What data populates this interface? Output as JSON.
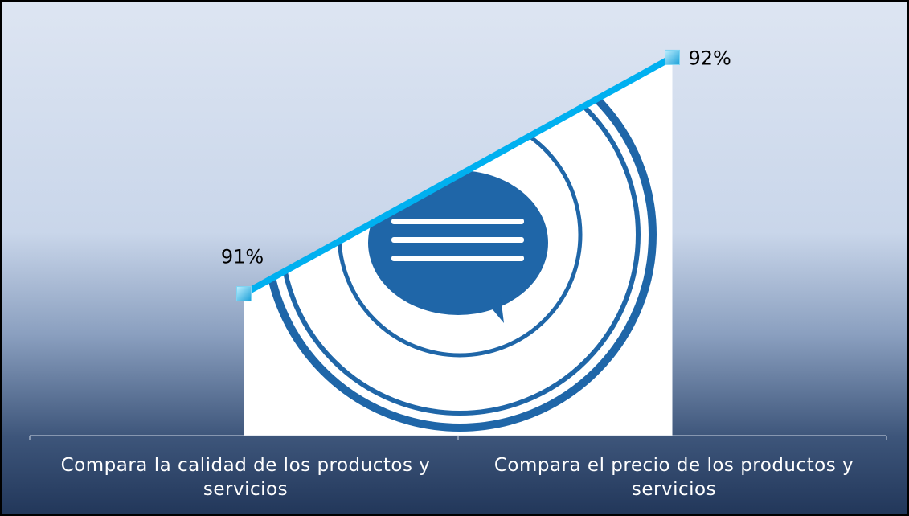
{
  "chart_data": {
    "type": "line",
    "categories": [
      "Compara la calidad de los productos y servicios",
      "Compara el precio de los productos y servicios"
    ],
    "series": [
      {
        "color": "#00b0f0",
        "values": [
          91,
          92
        ],
        "value_labels": [
          "91%",
          "92%"
        ]
      }
    ],
    "ylim": [
      90.4,
      92.1
    ]
  }
}
